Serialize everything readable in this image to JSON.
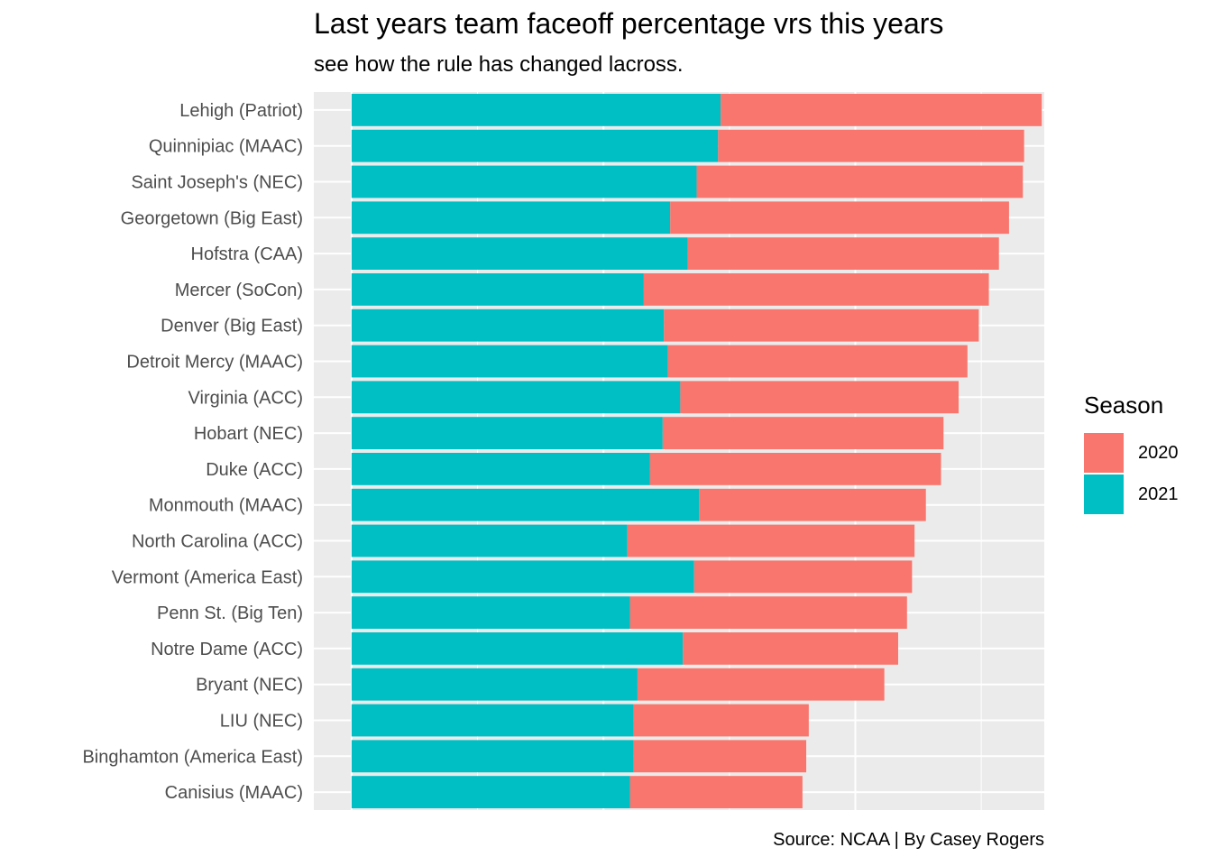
{
  "title": "Last years team faceoff percentage vrs this years",
  "subtitle": "see how the rule has changed lacross.",
  "caption": "Source: NCAA | By Casey Rogers",
  "legend": {
    "title": "Season",
    "items": [
      {
        "label": "2020",
        "color": "#F8766D"
      },
      {
        "label": "2021",
        "color": "#00BFC4"
      }
    ]
  },
  "chart_data": {
    "type": "bar",
    "orientation": "horizontal",
    "stacked": true,
    "xlabel": "",
    "ylabel": "",
    "xlim": [
      -0.03,
      0.55
    ],
    "grid": true,
    "legend_position": "right",
    "categories": [
      "Lehigh (Patriot)",
      "Quinnipiac (MAAC)",
      "Saint Joseph's (NEC)",
      "Georgetown (Big East)",
      "Hofstra (CAA)",
      "Mercer (SoCon)",
      "Denver (Big East)",
      "Detroit Mercy (MAAC)",
      "Virginia (ACC)",
      "Hobart (NEC)",
      "Duke (ACC)",
      "Monmouth (MAAC)",
      "North Carolina (ACC)",
      "Vermont (America East)",
      "Penn St. (Big Ten)",
      "Notre Dame (ACC)",
      "Bryant (NEC)",
      "LIU (NEC)",
      "Binghamton (America East)",
      "Canisius (MAAC)"
    ],
    "series": [
      {
        "name": "2021",
        "color": "#00BFC4",
        "values": [
          0.293,
          0.291,
          0.274,
          0.253,
          0.267,
          0.232,
          0.248,
          0.251,
          0.261,
          0.247,
          0.237,
          0.276,
          0.219,
          0.272,
          0.221,
          0.263,
          0.227,
          0.224,
          0.224,
          0.221
        ]
      },
      {
        "name": "2020",
        "color": "#F8766D",
        "values": [
          0.255,
          0.243,
          0.259,
          0.269,
          0.247,
          0.274,
          0.25,
          0.238,
          0.221,
          0.223,
          0.231,
          0.18,
          0.228,
          0.173,
          0.22,
          0.171,
          0.196,
          0.139,
          0.137,
          0.137
        ]
      }
    ]
  }
}
